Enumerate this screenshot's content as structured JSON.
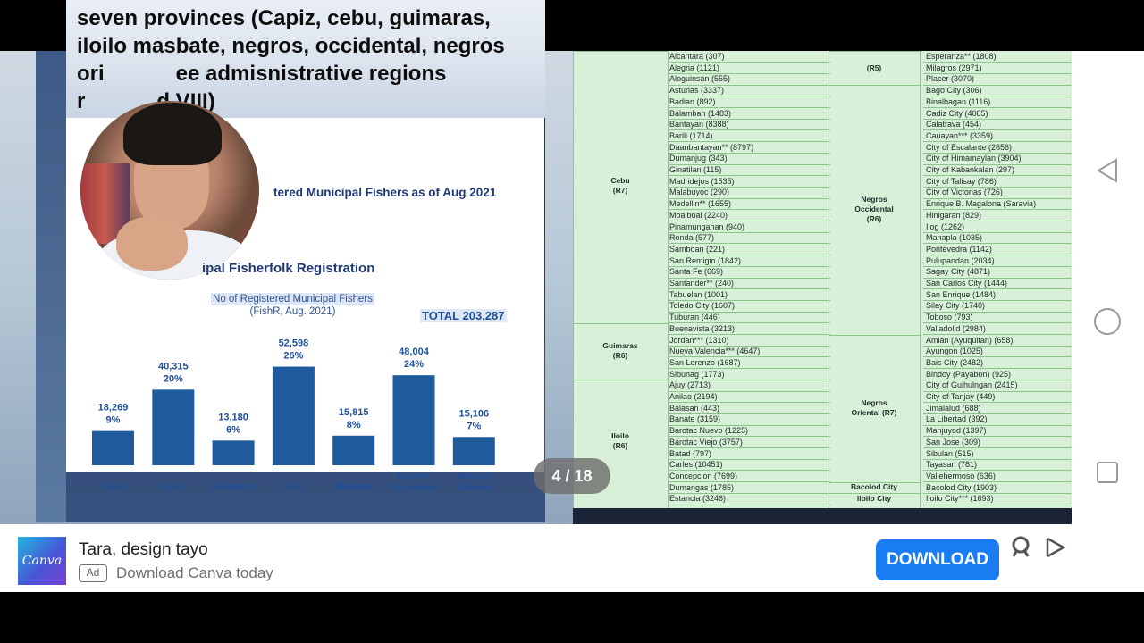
{
  "slide": {
    "title": "seven provinces (Capiz, cebu, guimaras, iloilo masbate, negros, occidental, negros ori... ee admisnistrative regions (r... d VIII)",
    "title_lines": [
      "seven provinces (Capiz, cebu, guimaras,",
      "iloilo masbate, negros, occidental, negros",
      "ori            ee admisnistrative regions",
      "r            d VIII)"
    ],
    "chart_heading": "tered Municipal Fishers as of Aug 2021",
    "chart_subheading": "ipal Fisherfolk Registration",
    "caption_line1": "No of Registered Municipal Fishers",
    "caption_line2": "(FishR, Aug. 2021)",
    "total": "TOTAL 203,287"
  },
  "chart_data": {
    "type": "bar",
    "categories": [
      "Capiz",
      "Cebu",
      "Guimaras",
      "Iloilo",
      "Masbate",
      "Negros Occidental",
      "Negros Oriental"
    ],
    "category_lines": [
      [
        "Capiz"
      ],
      [
        "Cebu"
      ],
      [
        "Guimaras"
      ],
      [
        "Iloilo"
      ],
      [
        "Masbate"
      ],
      [
        "Negros",
        "Occidental"
      ],
      [
        "Negros",
        "Oriental"
      ]
    ],
    "values": [
      18269,
      40315,
      13180,
      52598,
      15815,
      48004,
      15106
    ],
    "value_labels": [
      "18,269",
      "40,315",
      "13,180",
      "52,598",
      "15,815",
      "48,004",
      "15,106"
    ],
    "percent_labels": [
      "9%",
      "20%",
      "6%",
      "26%",
      "8%",
      "24%",
      "7%"
    ],
    "title": "No of Registered Municipal Fishers",
    "ylim": [
      0,
      60000
    ],
    "bar_color": "#1f5a9c"
  },
  "table": {
    "col1_groups": [
      {
        "label": [
          "Cebu",
          "(R7)"
        ]
      },
      {
        "label": [
          "Guimaras",
          "(R6)"
        ]
      },
      {
        "label": [
          "Iloilo",
          "(R6)"
        ]
      }
    ],
    "col3_groups": [
      {
        "label": [
          "(R5)"
        ]
      },
      {
        "label": [
          "Negros",
          "Occidental",
          "(R6)"
        ]
      },
      {
        "label": [
          "Negros",
          "Oriental (R7)"
        ]
      },
      {
        "label": [
          "Bacolod City"
        ]
      },
      {
        "label": [
          "Iloilo City"
        ]
      }
    ],
    "col2_rows": [
      "Alcantara (307)",
      "Alegria (1121)",
      "Aloguinsan (555)",
      "Asturias (3337)",
      "Badian (892)",
      "Balamban (1483)",
      "Bantayan (8388)",
      "Barili (1714)",
      "Daanbantayan** (8797)",
      "Dumanjug (343)",
      "Ginatilan (115)",
      "Madridejos (1535)",
      "Malabuyoc (290)",
      "Medellin** (1655)",
      "Moalboal (2240)",
      "Pinamungahan (940)",
      "Ronda (577)",
      "Samboan (221)",
      "San Remigio (1842)",
      "Santa Fe (669)",
      "Santander** (240)",
      "Tabuelan (1001)",
      "Toledo City (1607)",
      "Tuburan (446)",
      "Buenavista (3213)",
      "Jordan*** (1310)",
      "Nueva Valencia*** (4647)",
      "San Lorenzo (1687)",
      "Sibunag (1773)",
      "Ajuy (2713)",
      "Anilao (2194)",
      "Balasan (443)",
      "Banate (3159)",
      "Barotac Nuevo (1225)",
      "Barotac Viejo (3757)",
      "Batad (797)",
      "Carles (10451)",
      "Concepcion (7699)",
      "Dumangas (1785)",
      "Estancia (3246)"
    ],
    "col4_rows": [
      "Esperanza** (1808)",
      "Milagros (2971)",
      "Placer (3070)",
      "Bago City (306)",
      "Binalbagan (1116)",
      "Cadiz City (4065)",
      "Calatrava (454)",
      "Cauayan*** (3359)",
      "City of Escalante (2856)",
      "City of Himamaylan (3904)",
      "City of Kabankalan (297)",
      "City of Talisay (786)",
      "City of Victorias (726)",
      "Enrique B. Magalona (Saravia)",
      "Hinigaran (829)",
      "Ilog (1262)",
      "Manapla (1035)",
      "Pontevedra (1142)",
      "Pulupandan (2034)",
      "Sagay City (4871)",
      "San Carlos City (1444)",
      "San Enrique (1484)",
      "Silay City (1740)",
      "Toboso (793)",
      "Valladolid (2984)",
      "Amlan (Ayuquitan) (658)",
      "Ayungon (1025)",
      "Bais City (2482)",
      "Bindoy (Payabon) (925)",
      "City of Guihulngan (2415)",
      "City of Tanjay (449)",
      "Jimalalud (688)",
      "La Libertad (392)",
      "Manjuyod (1397)",
      "San Jose (309)",
      "Sibulan (515)",
      "Tayasan (781)",
      "Vallehermoso (636)",
      "Bacolod City (1903)",
      "Iloilo City*** (1693)"
    ]
  },
  "page_indicator": "4 / 18",
  "nav": {
    "back_icon": "triangle-back-icon",
    "home_icon": "circle-home-icon",
    "recents_icon": "square-recents-icon"
  },
  "ad": {
    "logo_text": "Canva",
    "title": "Tara, design tayo",
    "badge": "Ad",
    "subtitle": "Download Canva today",
    "cta": "DOWNLOAD",
    "cta_color": "#1a7cf2"
  }
}
